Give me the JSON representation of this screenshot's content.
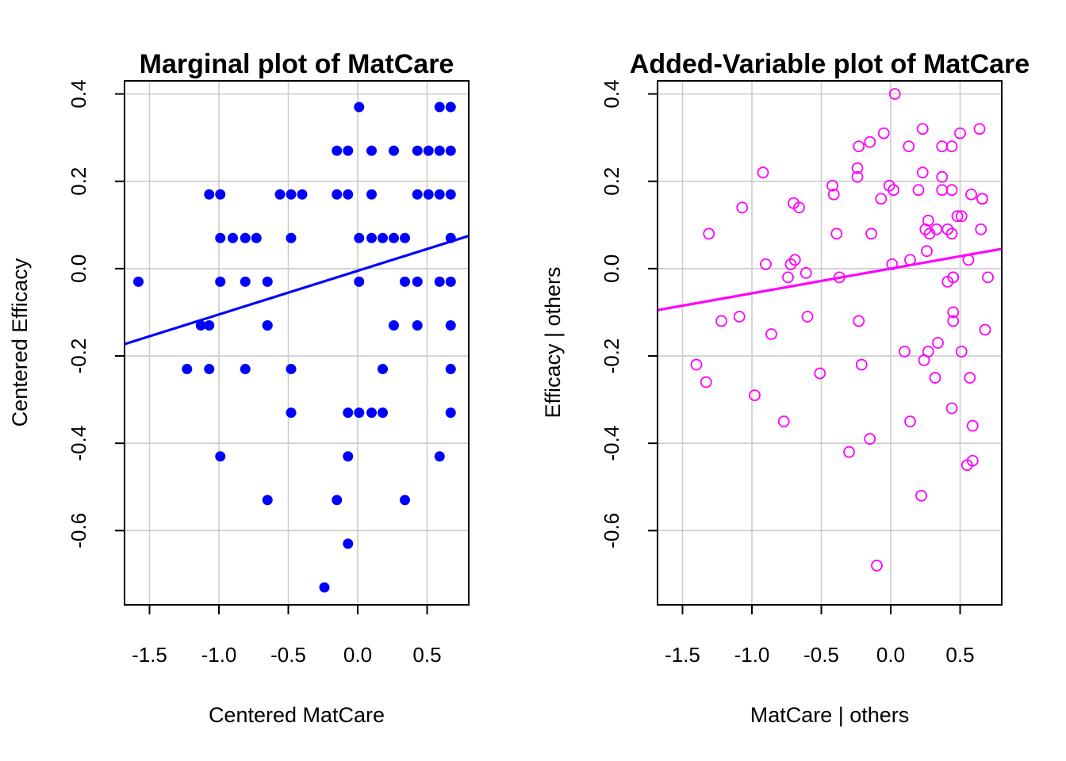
{
  "chart_data": [
    {
      "type": "scatter",
      "title": "Marginal plot of MatCare",
      "xlabel": "Centered MatCare",
      "ylabel": "Centered Efficacy",
      "xlim": [
        -1.68,
        0.8
      ],
      "ylim": [
        -0.77,
        0.43
      ],
      "xticks": [
        -1.5,
        -1.0,
        -0.5,
        0.0,
        0.5
      ],
      "xtick_labels": [
        "-1.5",
        "-1.0",
        "-0.5",
        "0.0",
        "0.5"
      ],
      "yticks": [
        -0.6,
        -0.4,
        -0.2,
        0.0,
        0.2,
        0.4
      ],
      "ytick_labels": [
        "-0.6",
        "-0.4",
        "-0.2",
        "0.0",
        "0.2",
        "0.4"
      ],
      "grid": true,
      "marker": "filled-circle",
      "point_color": "#0000ff",
      "line_color": "#0000ff",
      "fit_line": {
        "intercept": -0.005,
        "slope": 0.1
      },
      "x": [
        -1.58,
        -1.13,
        -1.07,
        -1.07,
        -1.07,
        -1.23,
        -0.99,
        -0.99,
        -0.99,
        -0.99,
        -0.9,
        -0.81,
        -0.81,
        -0.81,
        -0.73,
        -0.65,
        -0.65,
        -0.65,
        -0.65,
        -0.56,
        -0.48,
        -0.48,
        -0.48,
        -0.48,
        -0.4,
        -0.24,
        -0.15,
        -0.15,
        -0.15,
        -0.07,
        -0.07,
        -0.07,
        -0.07,
        -0.07,
        0.01,
        0.01,
        0.01,
        0.01,
        0.1,
        0.1,
        0.1,
        0.1,
        0.18,
        0.18,
        0.18,
        0.26,
        0.26,
        0.26,
        0.34,
        0.34,
        0.34,
        0.43,
        0.43,
        0.43,
        0.43,
        0.51,
        0.51,
        0.59,
        0.59,
        0.59,
        0.59,
        0.59,
        0.67,
        0.67,
        0.67,
        0.67,
        0.67,
        0.67,
        0.67,
        0.67
      ],
      "y": [
        -0.03,
        -0.13,
        -0.13,
        0.17,
        -0.23,
        -0.23,
        0.17,
        -0.03,
        -0.43,
        0.07,
        0.07,
        0.07,
        -0.03,
        -0.23,
        0.07,
        -0.03,
        -0.13,
        -0.13,
        -0.53,
        0.17,
        0.17,
        0.07,
        -0.23,
        -0.33,
        0.17,
        -0.73,
        0.27,
        0.17,
        -0.53,
        0.27,
        0.17,
        -0.33,
        -0.43,
        -0.63,
        0.37,
        0.07,
        -0.03,
        -0.33,
        0.27,
        0.17,
        -0.33,
        0.07,
        0.07,
        -0.23,
        -0.33,
        0.27,
        0.07,
        -0.13,
        0.07,
        -0.03,
        -0.53,
        0.27,
        0.17,
        -0.03,
        -0.13,
        0.27,
        0.17,
        0.37,
        0.27,
        0.17,
        -0.03,
        -0.43,
        0.37,
        0.27,
        0.17,
        0.07,
        -0.03,
        -0.13,
        -0.23,
        -0.33
      ]
    },
    {
      "type": "scatter",
      "title": "Added-Variable plot of MatCare",
      "xlabel": "MatCare | others",
      "ylabel": "Efficacy  | others",
      "xlim": [
        -1.68,
        0.8
      ],
      "ylim": [
        -0.77,
        0.43
      ],
      "xticks": [
        -1.5,
        -1.0,
        -0.5,
        0.0,
        0.5
      ],
      "xtick_labels": [
        "-1.5",
        "-1.0",
        "-0.5",
        "0.0",
        "0.5"
      ],
      "yticks": [
        -0.6,
        -0.4,
        -0.2,
        0.0,
        0.2,
        0.4
      ],
      "ytick_labels": [
        "-0.6",
        "-0.4",
        "-0.2",
        "0.0",
        "0.2",
        "0.4"
      ],
      "grid": true,
      "marker": "open-circle",
      "point_color": "#ff00ff",
      "line_color": "#ff00ff",
      "fit_line": {
        "intercept": 0.0,
        "slope": 0.0566
      },
      "x": [
        -1.31,
        -1.4,
        -1.33,
        -1.22,
        -1.09,
        -1.07,
        -0.98,
        -0.92,
        -0.9,
        -0.86,
        -0.77,
        -0.74,
        -0.72,
        -0.7,
        -0.69,
        -0.66,
        -0.61,
        -0.6,
        -0.51,
        -0.42,
        -0.41,
        -0.39,
        -0.37,
        -0.3,
        -0.24,
        -0.24,
        -0.23,
        -0.23,
        -0.21,
        -0.15,
        -0.15,
        -0.14,
        -0.1,
        -0.07,
        -0.05,
        -0.01,
        0.01,
        0.02,
        0.03,
        0.1,
        0.13,
        0.14,
        0.14,
        0.2,
        0.22,
        0.23,
        0.23,
        0.24,
        0.25,
        0.26,
        0.27,
        0.27,
        0.28,
        0.32,
        0.33,
        0.34,
        0.37,
        0.37,
        0.37,
        0.41,
        0.41,
        0.44,
        0.44,
        0.44,
        0.44,
        0.45,
        0.45,
        0.45,
        0.45,
        0.48,
        0.5,
        0.51,
        0.51,
        0.55,
        0.56,
        0.57,
        0.58,
        0.59,
        0.59,
        0.64,
        0.65,
        0.66,
        0.66,
        0.68,
        0.7
      ],
      "y": [
        0.08,
        -0.22,
        -0.26,
        -0.12,
        -0.11,
        0.14,
        -0.29,
        0.22,
        0.01,
        -0.15,
        -0.35,
        -0.02,
        0.01,
        0.15,
        0.02,
        0.14,
        -0.01,
        -0.11,
        -0.24,
        0.19,
        0.17,
        0.08,
        -0.02,
        -0.42,
        0.23,
        0.21,
        -0.12,
        0.28,
        -0.22,
        0.29,
        -0.39,
        0.08,
        -0.68,
        0.16,
        0.31,
        0.19,
        0.01,
        0.18,
        0.4,
        -0.19,
        0.28,
        0.02,
        -0.35,
        0.18,
        -0.52,
        0.32,
        0.22,
        -0.21,
        0.09,
        0.04,
        0.11,
        -0.19,
        0.08,
        -0.25,
        0.09,
        -0.17,
        0.28,
        0.21,
        0.18,
        -0.03,
        0.09,
        -0.32,
        0.28,
        0.18,
        0.08,
        -0.1,
        -0.12,
        -0.02,
        -0.02,
        0.12,
        0.31,
        -0.19,
        0.12,
        -0.45,
        0.02,
        -0.25,
        0.17,
        -0.44,
        -0.36,
        0.32,
        0.09,
        0.16,
        0.16,
        -0.14,
        -0.02
      ]
    }
  ]
}
